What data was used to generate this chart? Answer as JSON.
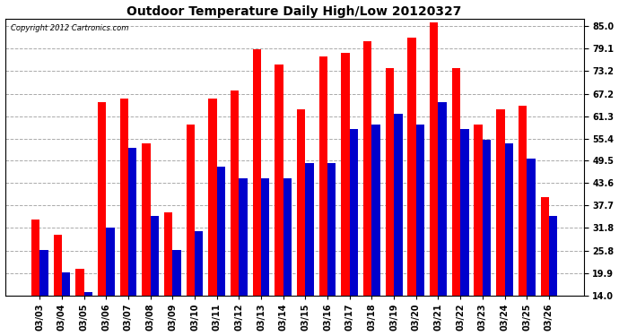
{
  "title": "Outdoor Temperature Daily High/Low 20120327",
  "copyright": "Copyright 2012 Cartronics.com",
  "dates": [
    "03/03",
    "03/04",
    "03/05",
    "03/06",
    "03/07",
    "03/08",
    "03/09",
    "03/10",
    "03/11",
    "03/12",
    "03/13",
    "03/14",
    "03/15",
    "03/16",
    "03/17",
    "03/18",
    "03/19",
    "03/20",
    "03/21",
    "03/22",
    "03/23",
    "03/24",
    "03/25",
    "03/26"
  ],
  "highs": [
    34.0,
    30.0,
    21.0,
    65.0,
    66.0,
    54.0,
    36.0,
    59.0,
    66.0,
    68.0,
    79.0,
    75.0,
    63.0,
    77.0,
    78.0,
    81.0,
    74.0,
    82.0,
    86.0,
    74.0,
    59.0,
    63.0,
    64.0,
    40.0
  ],
  "lows": [
    26.0,
    20.0,
    15.0,
    32.0,
    53.0,
    35.0,
    26.0,
    31.0,
    48.0,
    45.0,
    45.0,
    45.0,
    49.0,
    49.0,
    58.0,
    59.0,
    62.0,
    59.0,
    65.0,
    58.0,
    55.0,
    54.0,
    50.0,
    35.0
  ],
  "high_color": "#ff0000",
  "low_color": "#0000cc",
  "bg_color": "#ffffff",
  "plot_bg_color": "#ffffff",
  "grid_color": "#aaaaaa",
  "yticks": [
    14.0,
    19.9,
    25.8,
    31.8,
    37.7,
    43.6,
    49.5,
    55.4,
    61.3,
    67.2,
    73.2,
    79.1,
    85.0
  ],
  "ylim_min": 14.0,
  "ylim_max": 87.0,
  "bar_width": 0.38,
  "bar_bottom": 14.0
}
